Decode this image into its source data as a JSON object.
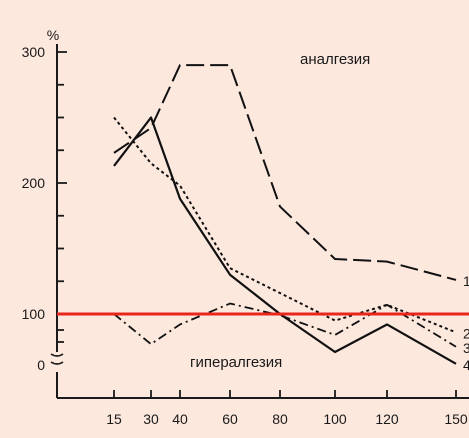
{
  "chart_data": {
    "type": "line",
    "ylabel": "%",
    "x_ticks": [
      15,
      30,
      40,
      60,
      80,
      100,
      120,
      150
    ],
    "y_ticks": [
      0,
      100,
      200,
      300
    ],
    "y_axis_break": true,
    "xlim": [
      0,
      150
    ],
    "ylim": [
      0,
      300
    ],
    "annotations": {
      "top": "аналгезия",
      "bottom": "гипералгезия"
    },
    "reference_line": {
      "y": 100,
      "color": "#e8261c"
    },
    "series": [
      {
        "name": "1",
        "style": "long-dash",
        "x": [
          15,
          30,
          40,
          60,
          80,
          100,
          120,
          150
        ],
        "y": [
          223,
          242,
          290,
          290,
          182,
          142,
          140,
          126
        ]
      },
      {
        "name": "2",
        "style": "dotted",
        "x": [
          15,
          30,
          40,
          60,
          80,
          100,
          120,
          150
        ],
        "y": [
          250,
          215,
          198,
          135,
          116,
          95,
          107,
          86
        ]
      },
      {
        "name": "3",
        "style": "dash-dot",
        "x": [
          15,
          30,
          40,
          60,
          80,
          100,
          120,
          150
        ],
        "y": [
          100,
          77,
          92,
          108,
          99,
          84,
          107,
          75
        ]
      },
      {
        "name": "4",
        "style": "solid",
        "x": [
          15,
          30,
          40,
          60,
          80,
          100,
          120,
          150
        ],
        "y": [
          213,
          250,
          188,
          130,
          100,
          71,
          92,
          62
        ]
      }
    ]
  }
}
